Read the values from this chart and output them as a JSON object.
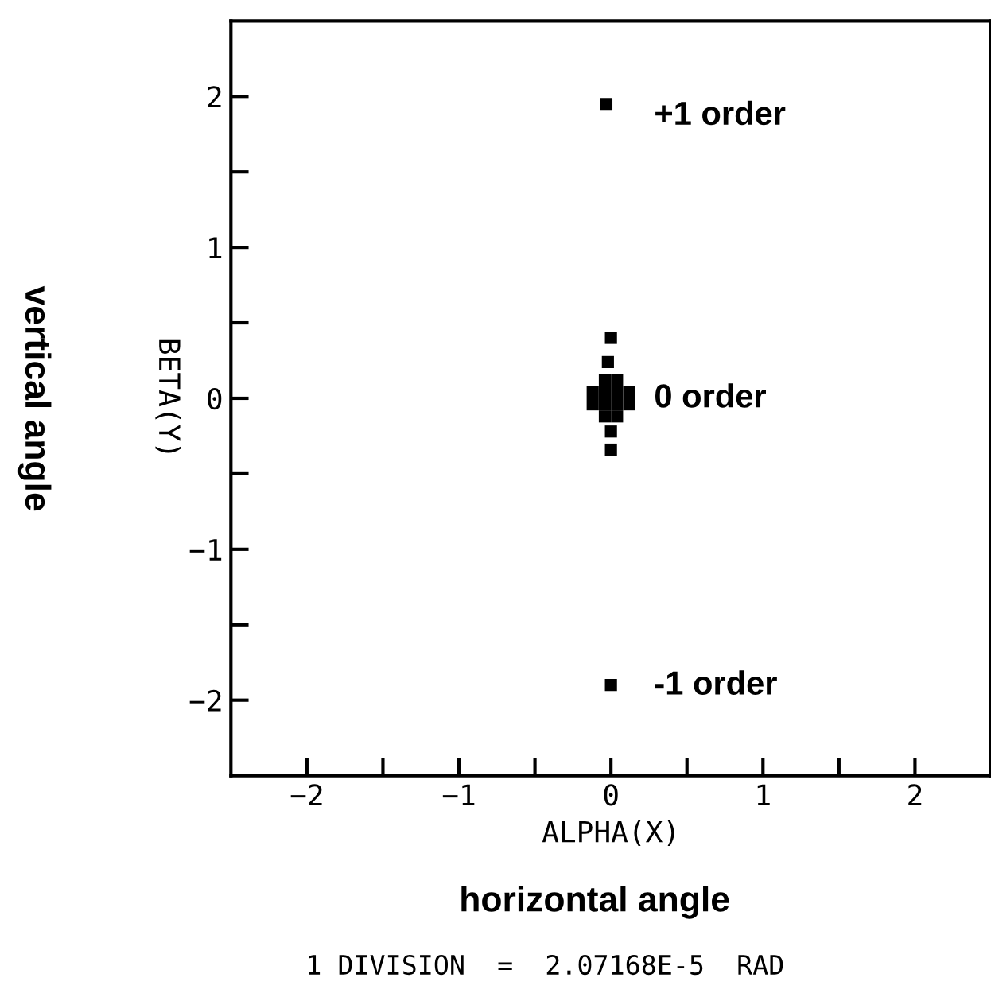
{
  "chart_data": {
    "type": "scatter",
    "x": [
      -0.03,
      0,
      -0.04,
      0.04,
      -0.12,
      -0.04,
      0.04,
      0.12,
      -0.12,
      -0.04,
      0.04,
      0.12,
      -0.04,
      0.04,
      -0.02,
      0,
      0,
      0
    ],
    "series": [
      {
        "color": "#000000",
        "values": [
          1.95,
          -1.9,
          0.12,
          0.12,
          0.04,
          0.04,
          0.04,
          0.04,
          -0.04,
          -0.04,
          -0.04,
          -0.04,
          -0.12,
          -0.12,
          0.24,
          0.4,
          -0.22,
          -0.34
        ]
      }
    ],
    "marker": "square",
    "xlabel": "ALPHA(X)",
    "ylabel": "BETA(Y)",
    "xlim": [
      -2.5,
      2.5
    ],
    "ylim": [
      -2.5,
      2.5
    ],
    "xticks": [
      {
        "value": -2,
        "label": "−2"
      },
      {
        "value": -1.5,
        "label": null
      },
      {
        "value": -1,
        "label": "−1"
      },
      {
        "value": -0.5,
        "label": null
      },
      0,
      {
        "value": 0.5,
        "label": null
      },
      1,
      {
        "value": 1.5,
        "label": null
      },
      2
    ],
    "yticks": [
      {
        "value": -2,
        "label": "−2"
      },
      {
        "value": -1.5,
        "label": null
      },
      {
        "value": -1,
        "label": "−1"
      },
      {
        "value": -0.5,
        "label": null
      },
      0,
      {
        "value": 0.5,
        "label": null
      },
      1,
      {
        "value": 1.5,
        "label": null
      },
      2
    ],
    "grid": false,
    "legend": false,
    "annotations": [
      "+1 order",
      "0 order",
      "-1 order",
      "horizontal angle",
      "vertical angle",
      "1 DIVISION  =  2.07168E-5  RAD"
    ]
  }
}
